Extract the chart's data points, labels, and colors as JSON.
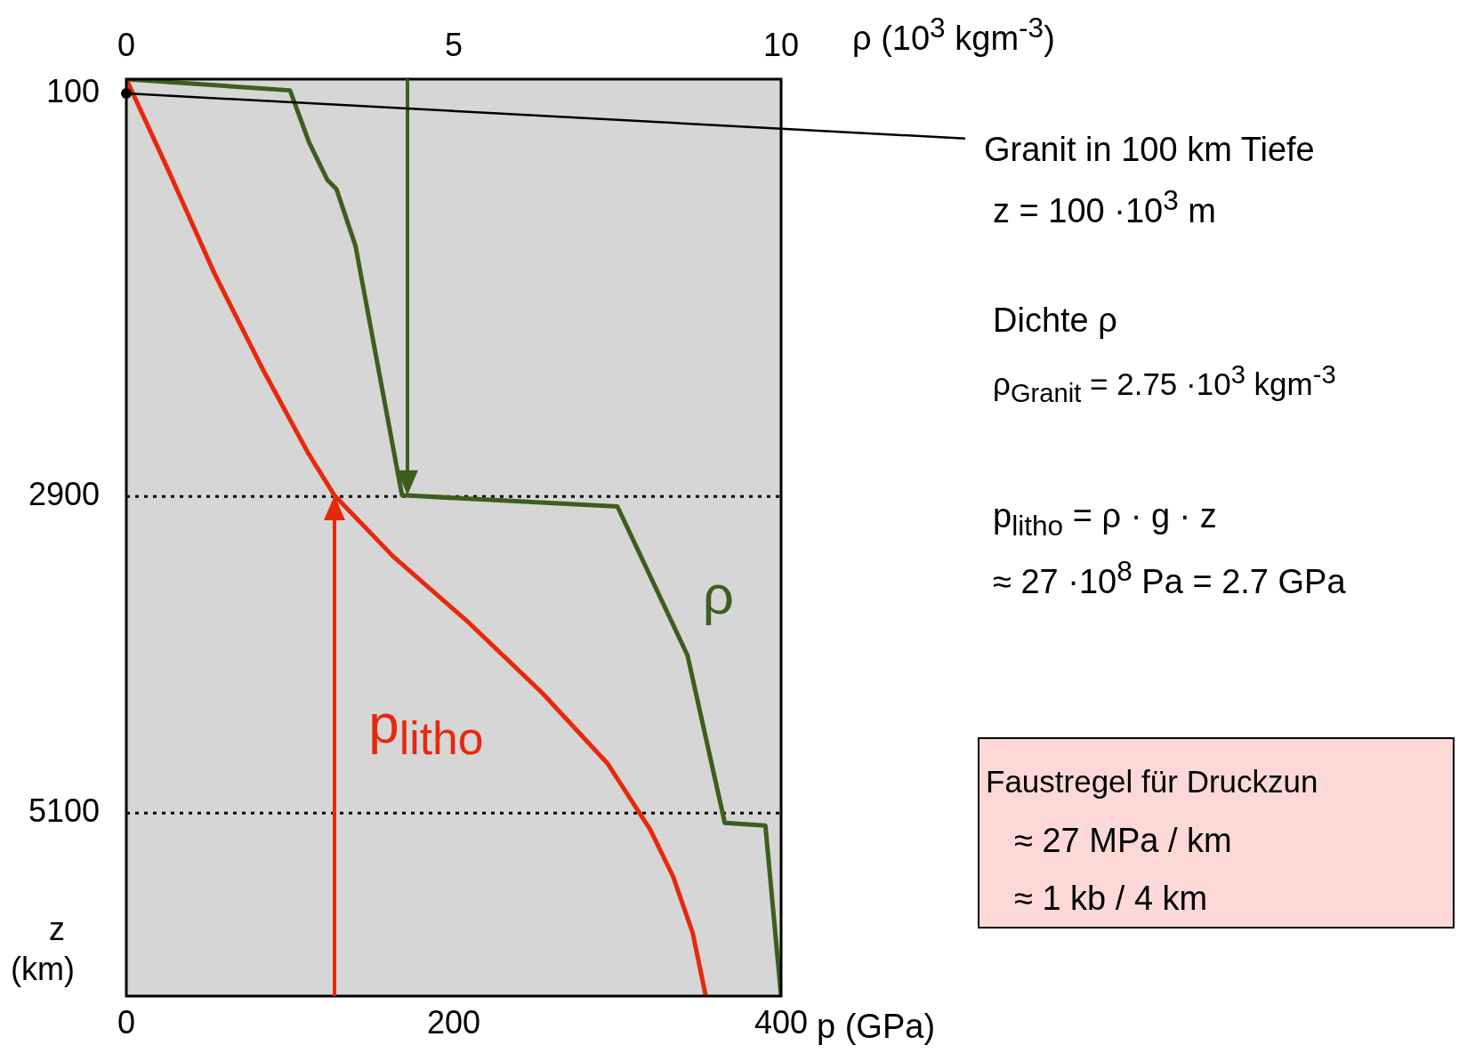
{
  "chart_data": {
    "type": "line",
    "xlabel": "p (GPa)",
    "x2label": "ρ (10$^{3}$ kgm$^{-3}$)",
    "ylabel": "z (km)",
    "xlim": [
      0,
      400
    ],
    "xticks": [
      0,
      200,
      400
    ],
    "x2lim": [
      0,
      10
    ],
    "x2ticks": [
      0,
      5,
      10
    ],
    "ylim": [
      6371,
      0
    ],
    "yticks": [
      100,
      2900,
      5100
    ],
    "series": [
      {
        "name": "p$_{litho}$",
        "color": "#e8280c",
        "x": [
          0,
          25.7,
          54,
          83,
          111,
          127,
          163,
          209,
          254,
          294,
          320,
          334,
          346,
          354
        ],
        "values": [
          0,
          634,
          1354,
          2008,
          2596,
          2890,
          3316,
          3774,
          4264,
          4755,
          5213,
          5540,
          5932,
          6371
        ]
      },
      {
        "name": "ρ",
        "color": "#3d5e1e",
        "axis": "x2",
        "x": [
          0,
          2.5,
          2.79,
          3.07,
          3.21,
          3.5,
          4.21,
          7.5,
          8.57,
          9.14,
          9.76,
          10
        ],
        "values": [
          0,
          78,
          438,
          700,
          765,
          1158,
          2891,
          2969,
          4003,
          5167,
          5186,
          6371
        ]
      }
    ],
    "ref_lines": [
      {
        "axis": "y",
        "value": 2900,
        "color": "#000000",
        "line_style": "dotted"
      },
      {
        "axis": "y",
        "value": 5100,
        "color": "#000000",
        "line_style": "dotted"
      }
    ],
    "annotations": [
      {
        "text": "Granit in 100 km Tiefe",
        "x": 0,
        "y": 100
      },
      "z = 100 ·10$^{3}$ m",
      "Dichte ρ",
      "ρ$_{Granit}$ = 2.75 ·10$^{3}$ kgm$^{-3}$",
      "p$_{litho}$ = ρ · g  · z",
      "≈ 27 ·10$^{8}$ Pa = 2.7 GPa",
      "Faustregel für Druckzun",
      "≈ 27 MPa / km",
      "≈ 1 kb / 4 km"
    ],
    "grid": false,
    "legend": false,
    "marker": "none",
    "line_style": "solid"
  }
}
